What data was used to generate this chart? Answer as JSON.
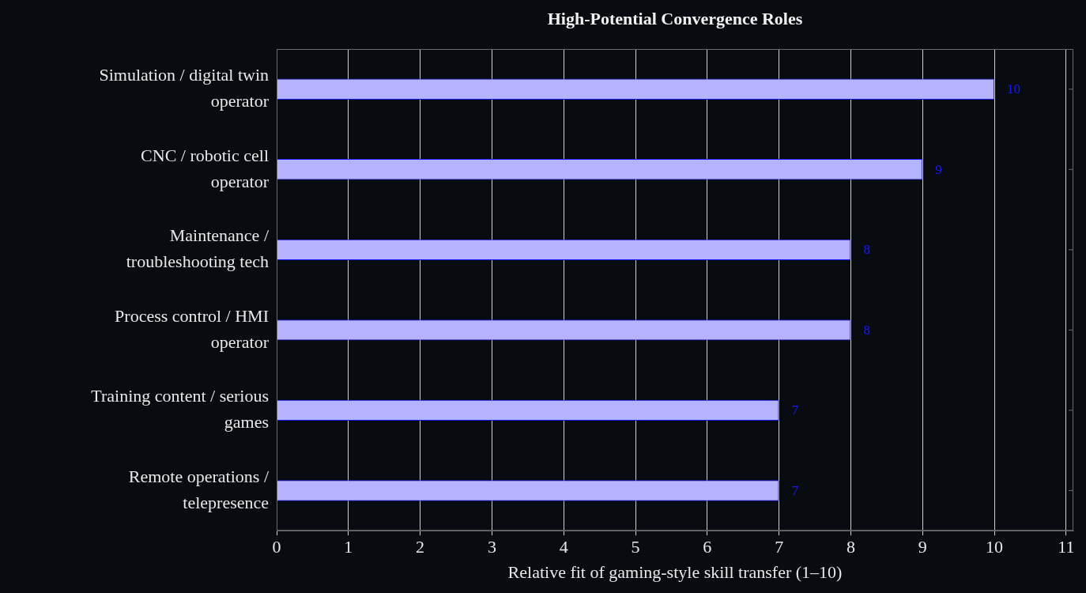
{
  "chart_data": {
    "type": "bar",
    "orientation": "horizontal",
    "title": "High-Potential Convergence Roles",
    "xlabel": "Relative fit of gaming-style skill transfer (1–10)",
    "categories": [
      "Simulation / digital twin operator",
      "CNC / robotic cell operator",
      "Maintenance / troubleshooting tech",
      "Process control / HMI operator",
      "Training content / serious games",
      "Remote operations / telepresence"
    ],
    "values": [
      10,
      9,
      8,
      8,
      7,
      7
    ],
    "color": "#b3b3ff",
    "xlim": [
      0,
      11.1
    ],
    "xticks": [
      0,
      1,
      2,
      3,
      4,
      5,
      6,
      7,
      8,
      9,
      10,
      11
    ],
    "grid": "x",
    "data_labels": true,
    "legend": false
  }
}
